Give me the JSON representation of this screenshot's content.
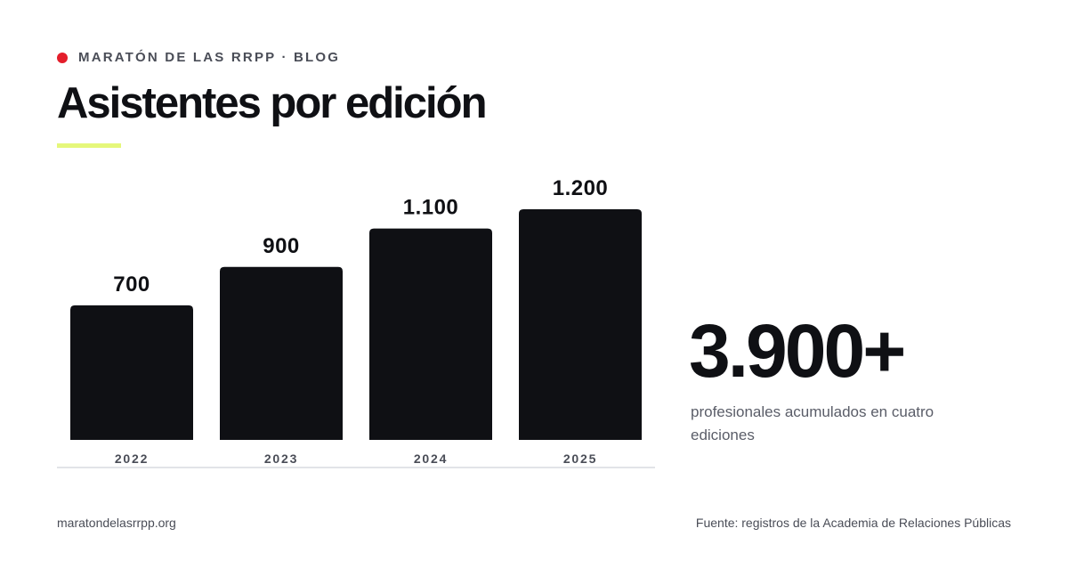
{
  "header": {
    "eyebrow": "MARATÓN DE LAS RRPP · BLOG",
    "title": "Asistentes por edición"
  },
  "colors": {
    "bar": "#0f1014",
    "dot": "#e41e2b",
    "accent": "#e5f77a"
  },
  "chart_data": {
    "type": "bar",
    "categories": [
      "2022",
      "2023",
      "2024",
      "2025"
    ],
    "values": [
      700,
      900,
      1100,
      1200
    ],
    "value_labels": [
      "700",
      "900",
      "1.100",
      "1.200"
    ],
    "ylim": [
      0,
      1400
    ],
    "grid": false,
    "legend": "none"
  },
  "stat": {
    "value": "3.900+",
    "caption": "profesionales acumulados en cuatro ediciones"
  },
  "footer": {
    "site": "maratondelasrrpp.org",
    "source": "Fuente: registros de la Academia de Relaciones Públicas"
  }
}
